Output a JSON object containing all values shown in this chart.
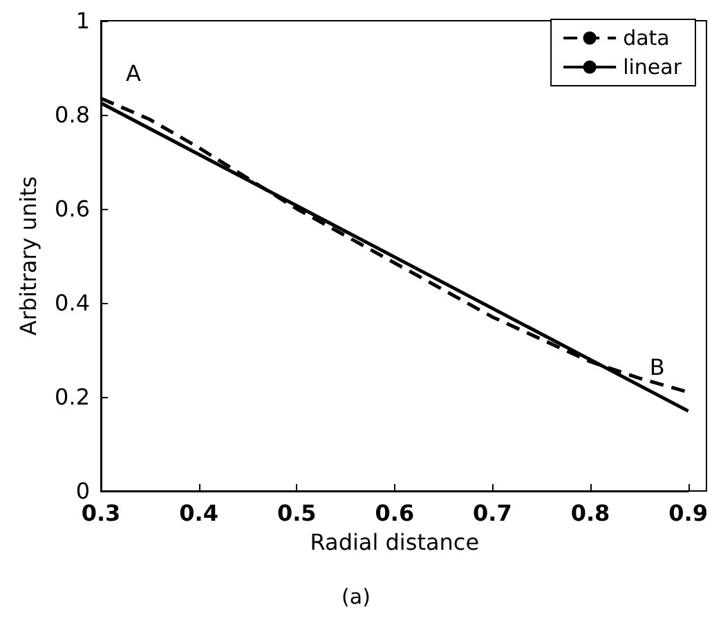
{
  "chart_data": {
    "type": "line",
    "xlabel": "Radial distance",
    "ylabel": "Arbitrary units",
    "x": [
      0.3,
      0.35,
      0.4,
      0.5,
      0.6,
      0.7,
      0.8,
      0.85,
      0.9
    ],
    "series": [
      {
        "name": "data",
        "color": "#000000",
        "line_style": "dashed",
        "values": [
          0.835,
          0.79,
          0.73,
          0.6,
          0.485,
          0.37,
          0.275,
          0.24,
          0.21
        ]
      },
      {
        "name": "linear",
        "color": "#000000",
        "line_style": "solid",
        "x": [
          0.3,
          0.9
        ],
        "values": [
          0.825,
          0.17
        ]
      }
    ],
    "annotations": [
      {
        "text": "A",
        "x": 0.3,
        "y": 0.835
      },
      {
        "text": "B",
        "x": 0.9,
        "y": 0.21
      },
      "(a)"
    ],
    "xlim": [
      0.3,
      0.9
    ],
    "xticks": [
      0.3,
      0.4,
      0.5,
      0.6,
      0.7,
      0.8,
      0.9
    ],
    "ylim": [
      0,
      1
    ],
    "yticks": [
      0,
      0.2,
      0.4,
      0.6,
      0.8,
      1
    ],
    "grid": false,
    "legend": "top right",
    "marker": "none"
  }
}
